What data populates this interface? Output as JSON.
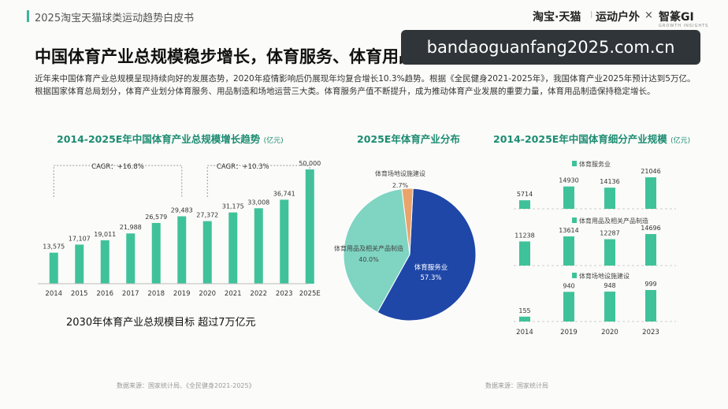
{
  "header": {
    "doc_title": "2025淘宝天猫球类运动趋势白皮书",
    "brand_taobao": "淘宝·天猫",
    "brand_sport": "运动户外",
    "brand_x": "×",
    "brand_zhizhuan": "智篆GI",
    "brand_zhizhuan_sub": "GROWTH INSIGHTS"
  },
  "headline": "中国体育产业总规模稳步增长，体育服务、体育用品及产品制造及重要推动力",
  "intro": "近年来中国体育产业总规模呈现持续向好的发展态势，2020年疫情影响后仍展现年均复合增长10.3%趋势。根据《全民健身2021-2025年》，我国体育产业2025年预计达到5万亿。根据国家体育总局划分，体育产业划分体育服务、用品制造和场地运营三大类。体育服务产值不断提升，成为推动体育产业发展的重要力量，体育用品制造保持稳定增长。",
  "watermark": "bandaoguanfang2025.com.cn",
  "colors": {
    "teal": "#3fc29a",
    "teal_title": "#1c8c72",
    "blue": "#1f47a8",
    "light_teal": "#7fd4c2",
    "orange": "#e9a36b"
  },
  "chart_data": [
    {
      "type": "bar",
      "title": "2014-2025E年中国体育产业总规模增长趋势",
      "unit": "(亿元)",
      "categories": [
        "2014",
        "2015",
        "2016",
        "2017",
        "2018",
        "2019",
        "2020",
        "2021",
        "2022",
        "2023",
        "2025E"
      ],
      "values": [
        13575,
        17107,
        19011,
        21988,
        26579,
        29483,
        27372,
        31175,
        33008,
        36741,
        50000
      ],
      "value_labels": [
        "13,575",
        "17,107",
        "19,011",
        "21,988",
        "26,579",
        "29,483",
        "27,372",
        "31,175",
        "33,008",
        "36,741",
        "50,000"
      ],
      "annotations": [
        {
          "text": "CAGR：+16.8%"
        },
        {
          "text": "CAGR：+10.3%"
        }
      ],
      "ylim": [
        0,
        50000
      ],
      "footnote": "2030年体育产业总规模目标 超过7万亿元"
    },
    {
      "type": "pie",
      "title": "2025E年体育产业分布",
      "slices": [
        {
          "name": "体育服务业",
          "value": 57.3,
          "label": "57.3%",
          "color": "#1f47a8"
        },
        {
          "name": "体育用品及相关产品制造",
          "value": 40.0,
          "label": "40.0%",
          "color": "#7fd4c2"
        },
        {
          "name": "体育场地设施建设",
          "value": 2.7,
          "label": "2.7%",
          "color": "#e9a36b"
        }
      ]
    },
    {
      "type": "bar",
      "title": "2014-2025E年中国体育细分产业规模",
      "unit": "(亿元)",
      "categories": [
        "2014",
        "2019",
        "2020",
        "2023"
      ],
      "series": [
        {
          "name": "体育服务业",
          "values": [
            5714,
            14930,
            14136,
            21046
          ]
        },
        {
          "name": "体育用品及相关产品制造",
          "values": [
            11238,
            13614,
            12287,
            14696
          ]
        },
        {
          "name": "体育场地设施建设",
          "values": [
            155,
            940,
            948,
            999
          ]
        }
      ]
    }
  ],
  "sources": {
    "left": "数据来源：国家统计局、《全民健身2021-2025》",
    "right": "数据来源：国家统计局"
  }
}
